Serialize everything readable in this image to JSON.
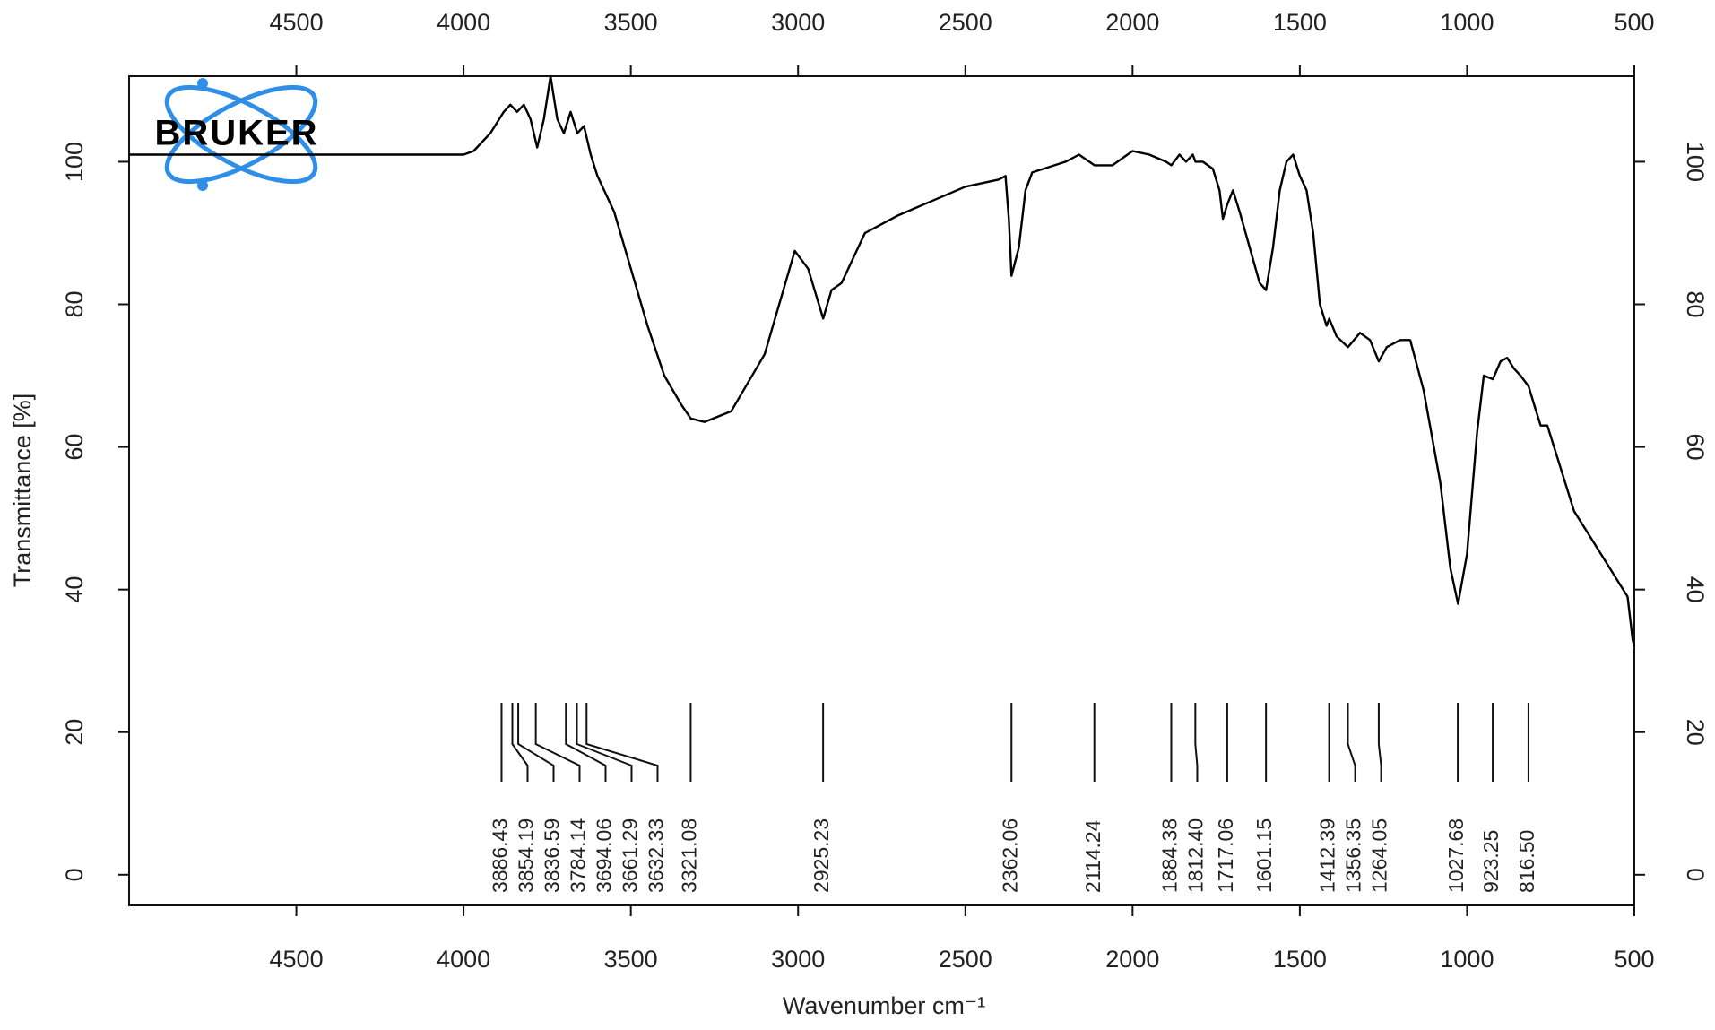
{
  "chart_data": {
    "type": "line",
    "logo": "BRUKER",
    "xlabel": "Wavenumber cm⁻¹",
    "ylabel": "Transmittance [%]",
    "xlim": [
      5000,
      500
    ],
    "ylim": [
      -4.3,
      112
    ],
    "xticks": [
      4500,
      4000,
      3500,
      3000,
      2500,
      2000,
      1500,
      1000,
      500
    ],
    "yticks": [
      0,
      20,
      40,
      60,
      80,
      100
    ],
    "color": "#000000",
    "x": [
      5000,
      4000,
      3970,
      3920,
      3880,
      3860,
      3840,
      3820,
      3800,
      3780,
      3760,
      3740,
      3720,
      3700,
      3680,
      3660,
      3640,
      3620,
      3600,
      3550,
      3500,
      3450,
      3400,
      3350,
      3321,
      3280,
      3200,
      3100,
      3010,
      2970,
      2925,
      2900,
      2870,
      2840,
      2800,
      2700,
      2600,
      2500,
      2400,
      2380,
      2370,
      2362,
      2340,
      2320,
      2300,
      2200,
      2160,
      2114,
      2060,
      2000,
      1950,
      1900,
      1884,
      1860,
      1840,
      1820,
      1812,
      1790,
      1760,
      1740,
      1730,
      1717,
      1700,
      1680,
      1650,
      1620,
      1601,
      1580,
      1560,
      1540,
      1520,
      1500,
      1480,
      1460,
      1440,
      1420,
      1412,
      1390,
      1356,
      1320,
      1290,
      1264,
      1240,
      1200,
      1170,
      1130,
      1080,
      1050,
      1027,
      1000,
      970,
      950,
      923,
      900,
      880,
      860,
      840,
      816,
      800,
      780,
      760,
      720,
      680,
      640,
      600,
      560,
      520,
      505,
      500
    ],
    "values": [
      101,
      101,
      101.5,
      104,
      107,
      108,
      107,
      108,
      106,
      102,
      106,
      112,
      106,
      104,
      107,
      104,
      105,
      101,
      98,
      93,
      85,
      77,
      70,
      66,
      64,
      63.5,
      65,
      73,
      87.5,
      85,
      78,
      82,
      83,
      86,
      90,
      92.5,
      94.5,
      96.5,
      97.5,
      98,
      92,
      84,
      88,
      96,
      98.5,
      100,
      101,
      99.5,
      99.5,
      101.5,
      101,
      100,
      99.5,
      101,
      100,
      101,
      100,
      100,
      99,
      96,
      92,
      94,
      96,
      93,
      88,
      83,
      82,
      88,
      96,
      100,
      101,
      98,
      96,
      90,
      80,
      77,
      78,
      75.5,
      74,
      76,
      75,
      72,
      74,
      75,
      75,
      68,
      55,
      43,
      38,
      45,
      62,
      70,
      69.5,
      72,
      72.5,
      71,
      70,
      68.5,
      66,
      63,
      63,
      57,
      51,
      48,
      45,
      42,
      39,
      33,
      32
    ],
    "peaks": [
      {
        "value": 3886.43,
        "label": "3886.43"
      },
      {
        "value": 3854.19,
        "label": "3854.19"
      },
      {
        "value": 3836.59,
        "label": "3836.59"
      },
      {
        "value": 3784.14,
        "label": "3784.14"
      },
      {
        "value": 3694.06,
        "label": "3694.06"
      },
      {
        "value": 3661.29,
        "label": "3661.29"
      },
      {
        "value": 3632.33,
        "label": "3632.33"
      },
      {
        "value": 3321.08,
        "label": "3321.08"
      },
      {
        "value": 2925.23,
        "label": "2925.23"
      },
      {
        "value": 2362.06,
        "label": "2362.06"
      },
      {
        "value": 2114.24,
        "label": "2114.24"
      },
      {
        "value": 1884.38,
        "label": "1884.38"
      },
      {
        "value": 1812.4,
        "label": "1812.40"
      },
      {
        "value": 1717.06,
        "label": "1717.06"
      },
      {
        "value": 1601.15,
        "label": "1601.15"
      },
      {
        "value": 1412.39,
        "label": "1412.39"
      },
      {
        "value": 1356.35,
        "label": "1356.35"
      },
      {
        "value": 1264.05,
        "label": "1264.05"
      },
      {
        "value": 1027.68,
        "label": "1027.68"
      },
      {
        "value": 923.25,
        "label": "923.25"
      },
      {
        "value": 816.5,
        "label": "816.50"
      }
    ]
  }
}
